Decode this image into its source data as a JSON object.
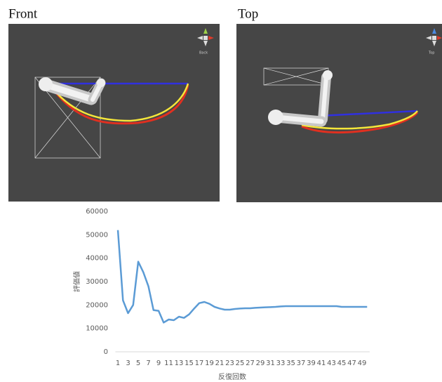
{
  "panels": [
    {
      "label": "Front",
      "gizmo_label": "Back"
    },
    {
      "label": "Top",
      "gizmo_label": "Top"
    }
  ],
  "chart_data": {
    "type": "line",
    "x_label": "反復回数",
    "y_label": "評価値",
    "categories": [
      "1",
      null,
      "3",
      null,
      "5",
      null,
      "7",
      null,
      "9",
      null,
      "11",
      null,
      "13",
      null,
      "15",
      null,
      "17",
      null,
      "19",
      null,
      "21",
      null,
      "23",
      null,
      "25",
      null,
      "27",
      null,
      "29",
      null,
      "31",
      null,
      "33",
      null,
      "35",
      null,
      "37",
      null,
      "39",
      null,
      "41",
      null,
      "43",
      null,
      "45",
      null,
      "47",
      null,
      "49",
      null
    ],
    "values": [
      52000,
      22000,
      16500,
      20000,
      38500,
      34000,
      28000,
      17800,
      17500,
      12500,
      13800,
      13500,
      15000,
      14500,
      16000,
      18500,
      20800,
      21300,
      20500,
      19200,
      18500,
      18000,
      18000,
      18300,
      18500,
      18600,
      18600,
      18800,
      18900,
      19000,
      19100,
      19200,
      19400,
      19500,
      19500,
      19500,
      19500,
      19500,
      19500,
      19500,
      19500,
      19500,
      19500,
      19500,
      19200,
      19200,
      19200,
      19200,
      19200,
      19200
    ],
    "color": "#5b9bd5",
    "ylim": [
      0,
      60000
    ],
    "yticks": [
      0,
      10000,
      20000,
      30000,
      40000,
      50000,
      60000
    ],
    "grid": false
  }
}
